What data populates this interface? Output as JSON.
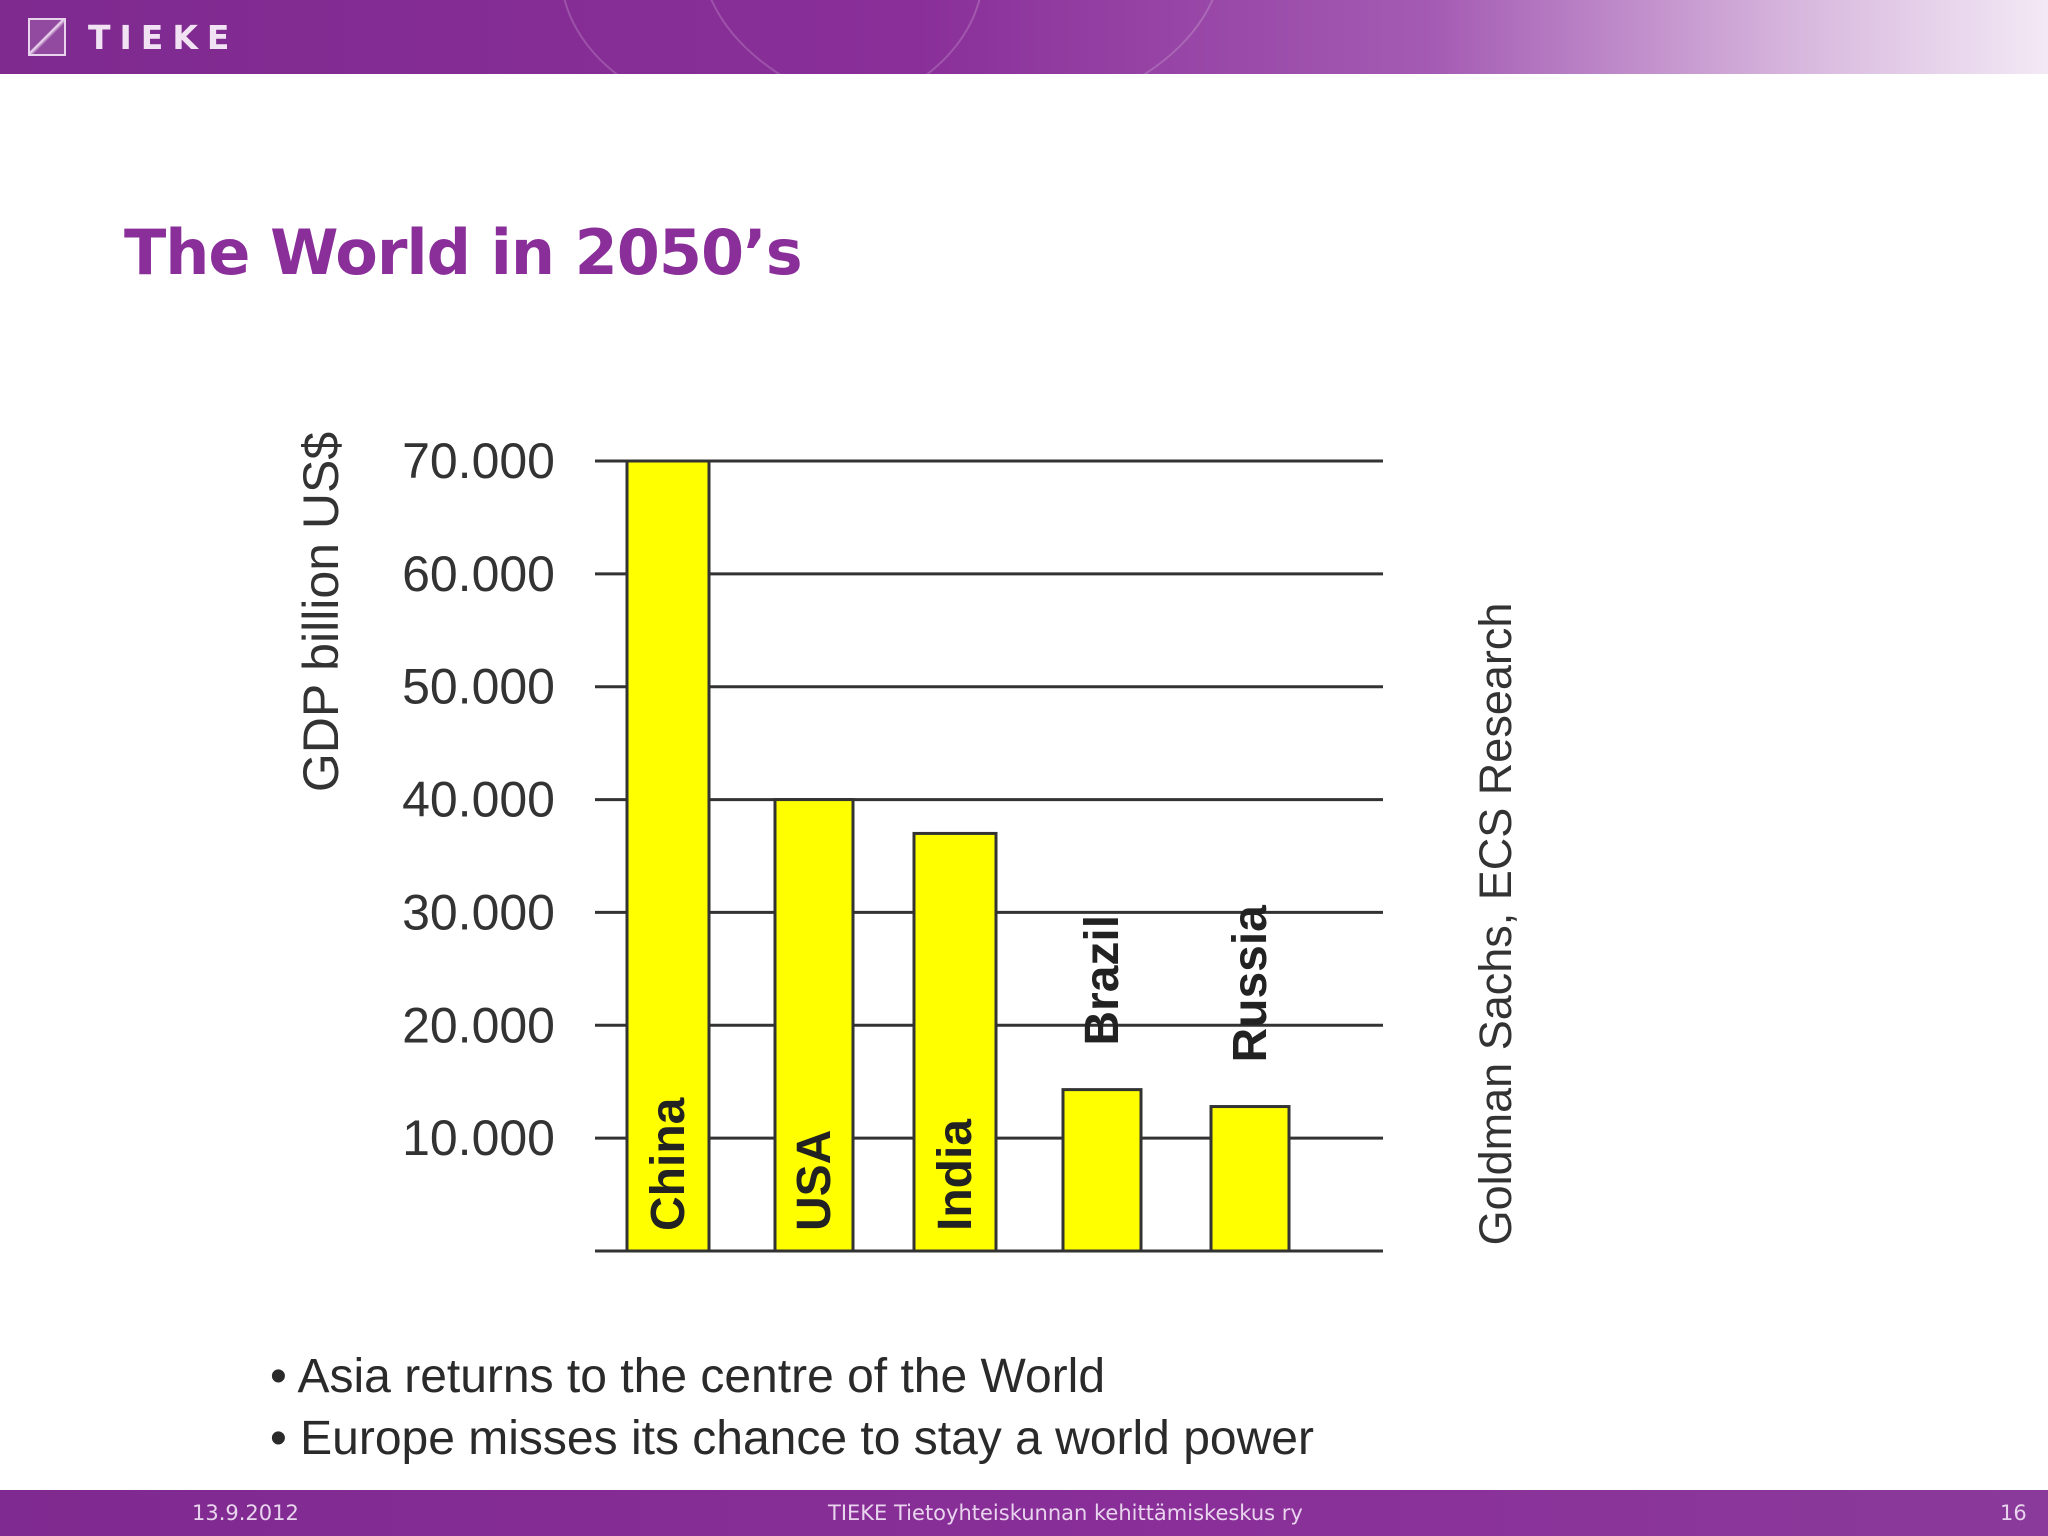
{
  "header": {
    "logo_text": "TIEKE",
    "logo_icon": "tieke-logo-mark-icon"
  },
  "slide": {
    "title": "The World in 2050’s",
    "source": "Goldman Sachs, ECS Research",
    "bullets": [
      "• Asia returns to the centre of the World",
      "• Europe misses its chance to stay a world power"
    ]
  },
  "footer": {
    "date": "13.9.2012",
    "org": "TIEKE  Tietoyhteiskunnan kehittämiskeskus ry",
    "page": "16"
  },
  "colors": {
    "accent": "#8a2f99",
    "bar_fill": "#ffff00",
    "bar_stroke": "#333333"
  },
  "chart_data": {
    "type": "bar",
    "categories": [
      "China",
      "USA",
      "India",
      "Brazil",
      "Russia"
    ],
    "values": [
      70000,
      40000,
      37000,
      14300,
      12800
    ],
    "ylabel": "GDP billion US$",
    "ylim": [
      0,
      70000
    ],
    "yticks": [
      "10.000",
      "20.000",
      "30.000",
      "40.000",
      "50.000",
      "60.000",
      "70.000"
    ],
    "grid": true,
    "legend": false
  }
}
